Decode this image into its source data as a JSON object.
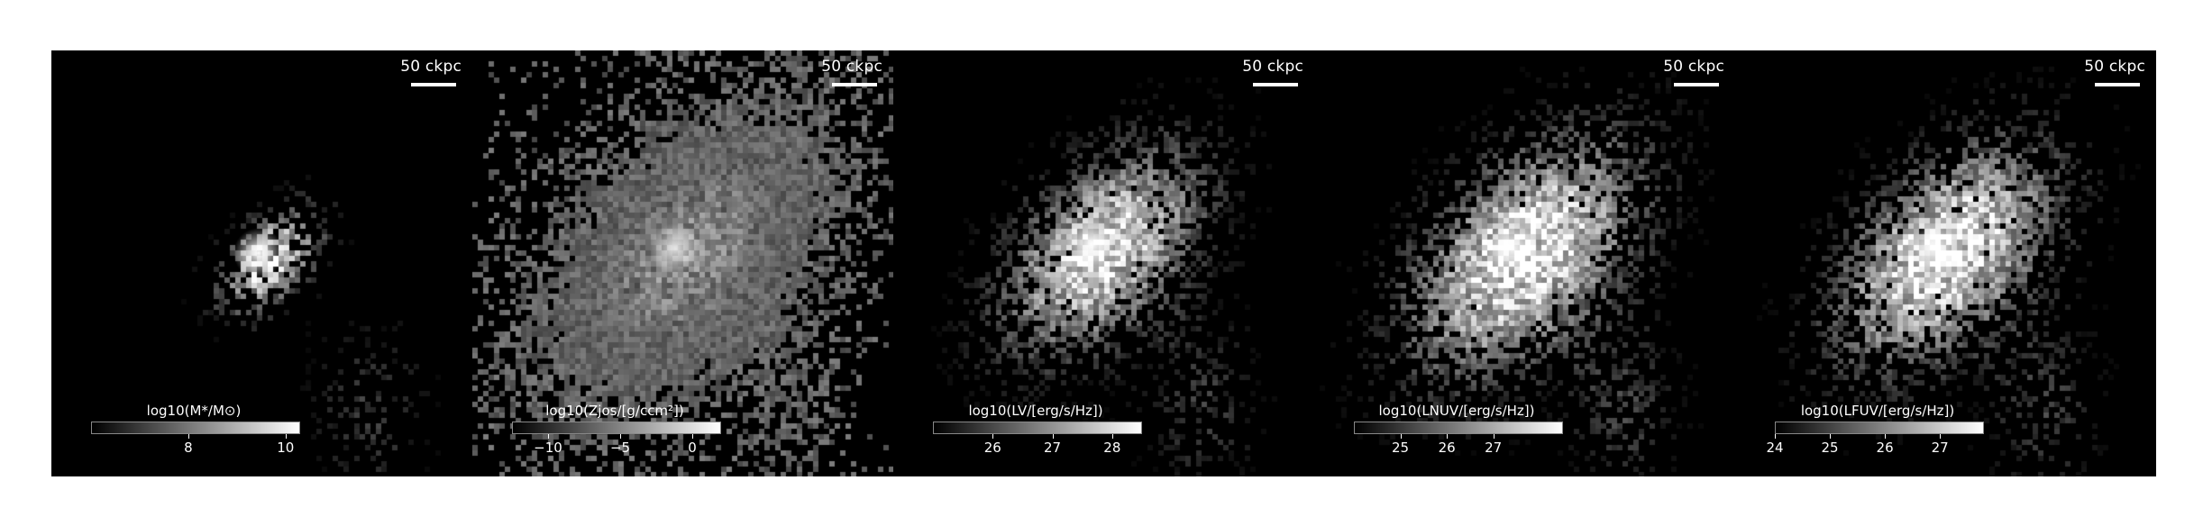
{
  "panels": [
    {
      "scalebar": "50 ckpc",
      "colorbar_label": "log10(M*/M⊙)",
      "colorbar_range": [
        6.0,
        10.3
      ],
      "colorbar_ticks": [
        {
          "value": 8,
          "label": "8"
        },
        {
          "value": 10,
          "label": "10"
        }
      ]
    },
    {
      "scalebar": "50 ckpc",
      "colorbar_label": "log10(Zjos/[g/ccm²])",
      "colorbar_range": [
        -12.5,
        2.0
      ],
      "colorbar_ticks": [
        {
          "value": -10,
          "label": "−10"
        },
        {
          "value": -5,
          "label": "−5"
        },
        {
          "value": 0,
          "label": "0"
        }
      ]
    },
    {
      "scalebar": "50 ckpc",
      "colorbar_label": "log10(LV/[erg/s/Hz])",
      "colorbar_range": [
        25.0,
        28.5
      ],
      "colorbar_ticks": [
        {
          "value": 26,
          "label": "26"
        },
        {
          "value": 27,
          "label": "27"
        },
        {
          "value": 28,
          "label": "28"
        }
      ]
    },
    {
      "scalebar": "50 ckpc",
      "colorbar_label": "log10(LNUV/[erg/s/Hz])",
      "colorbar_range": [
        24.0,
        28.5
      ],
      "colorbar_ticks": [
        {
          "value": 25,
          "label": "25"
        },
        {
          "value": 26,
          "label": "26"
        },
        {
          "value": 27,
          "label": "27"
        }
      ]
    },
    {
      "scalebar": "50 ckpc",
      "colorbar_label": "log10(LFUV/[erg/s/Hz])",
      "colorbar_range": [
        24.0,
        27.8
      ],
      "colorbar_ticks": [
        {
          "value": 24,
          "label": "24"
        },
        {
          "value": 25,
          "label": "25"
        },
        {
          "value": 26,
          "label": "26"
        },
        {
          "value": 27,
          "label": "27"
        }
      ]
    }
  ]
}
